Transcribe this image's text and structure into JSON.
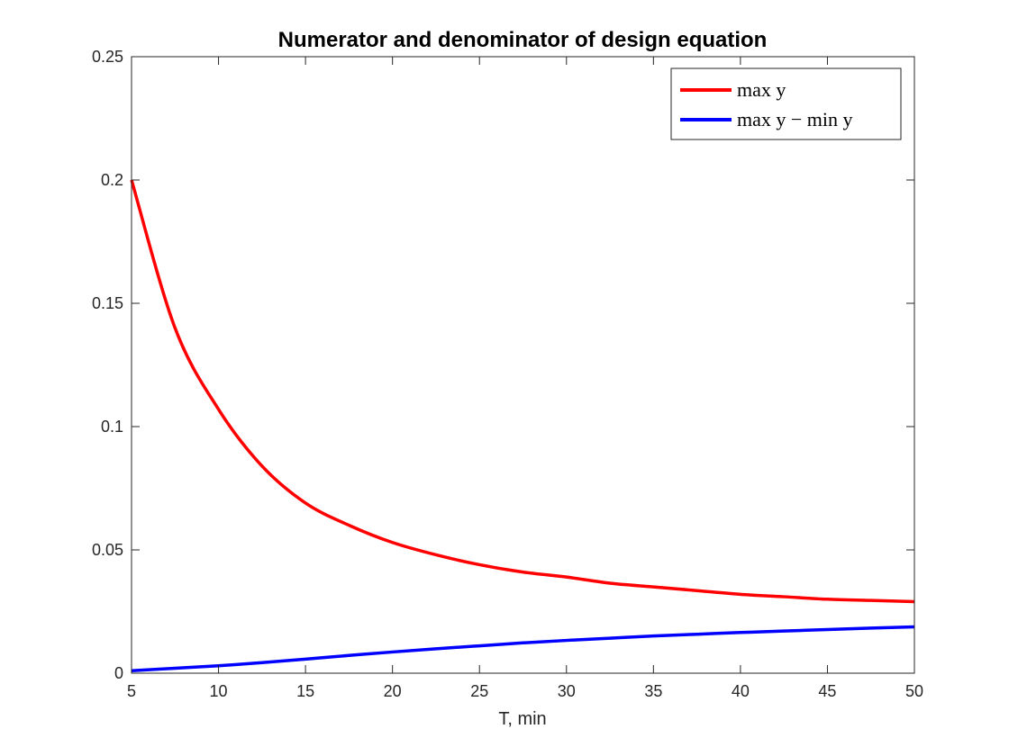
{
  "chart_data": {
    "type": "line",
    "title": "Numerator and denominator of design equation",
    "xlabel": "T, min",
    "ylabel": "",
    "xlim": [
      5,
      50
    ],
    "ylim": [
      0,
      0.25
    ],
    "xticks": [
      "5",
      "10",
      "15",
      "20",
      "25",
      "30",
      "35",
      "40",
      "45",
      "50"
    ],
    "yticks": [
      "0",
      "0.05",
      "0.1",
      "0.15",
      "0.2",
      "0.25"
    ],
    "legend_placement": "top-right",
    "grid": false,
    "x": [
      5,
      7.5,
      10,
      12.5,
      15,
      17.5,
      20,
      22.5,
      25,
      27.5,
      30,
      32.5,
      35,
      37.5,
      40,
      42.5,
      45,
      47.5,
      50
    ],
    "series": [
      {
        "name": "max y",
        "color": "#ff0000",
        "values": [
          0.2,
          0.14,
          0.107,
          0.084,
          0.069,
          0.06,
          0.053,
          0.048,
          0.044,
          0.041,
          0.039,
          0.0365,
          0.035,
          0.0335,
          0.032,
          0.031,
          0.03,
          0.0295,
          0.029
        ]
      },
      {
        "name": "max y − min y",
        "color": "#0000ff",
        "values": [
          0.001,
          0.002,
          0.003,
          0.0043,
          0.0057,
          0.0072,
          0.0086,
          0.0099,
          0.0111,
          0.0123,
          0.0133,
          0.0142,
          0.0151,
          0.0158,
          0.0165,
          0.0171,
          0.0177,
          0.0183,
          0.0188
        ]
      }
    ]
  }
}
